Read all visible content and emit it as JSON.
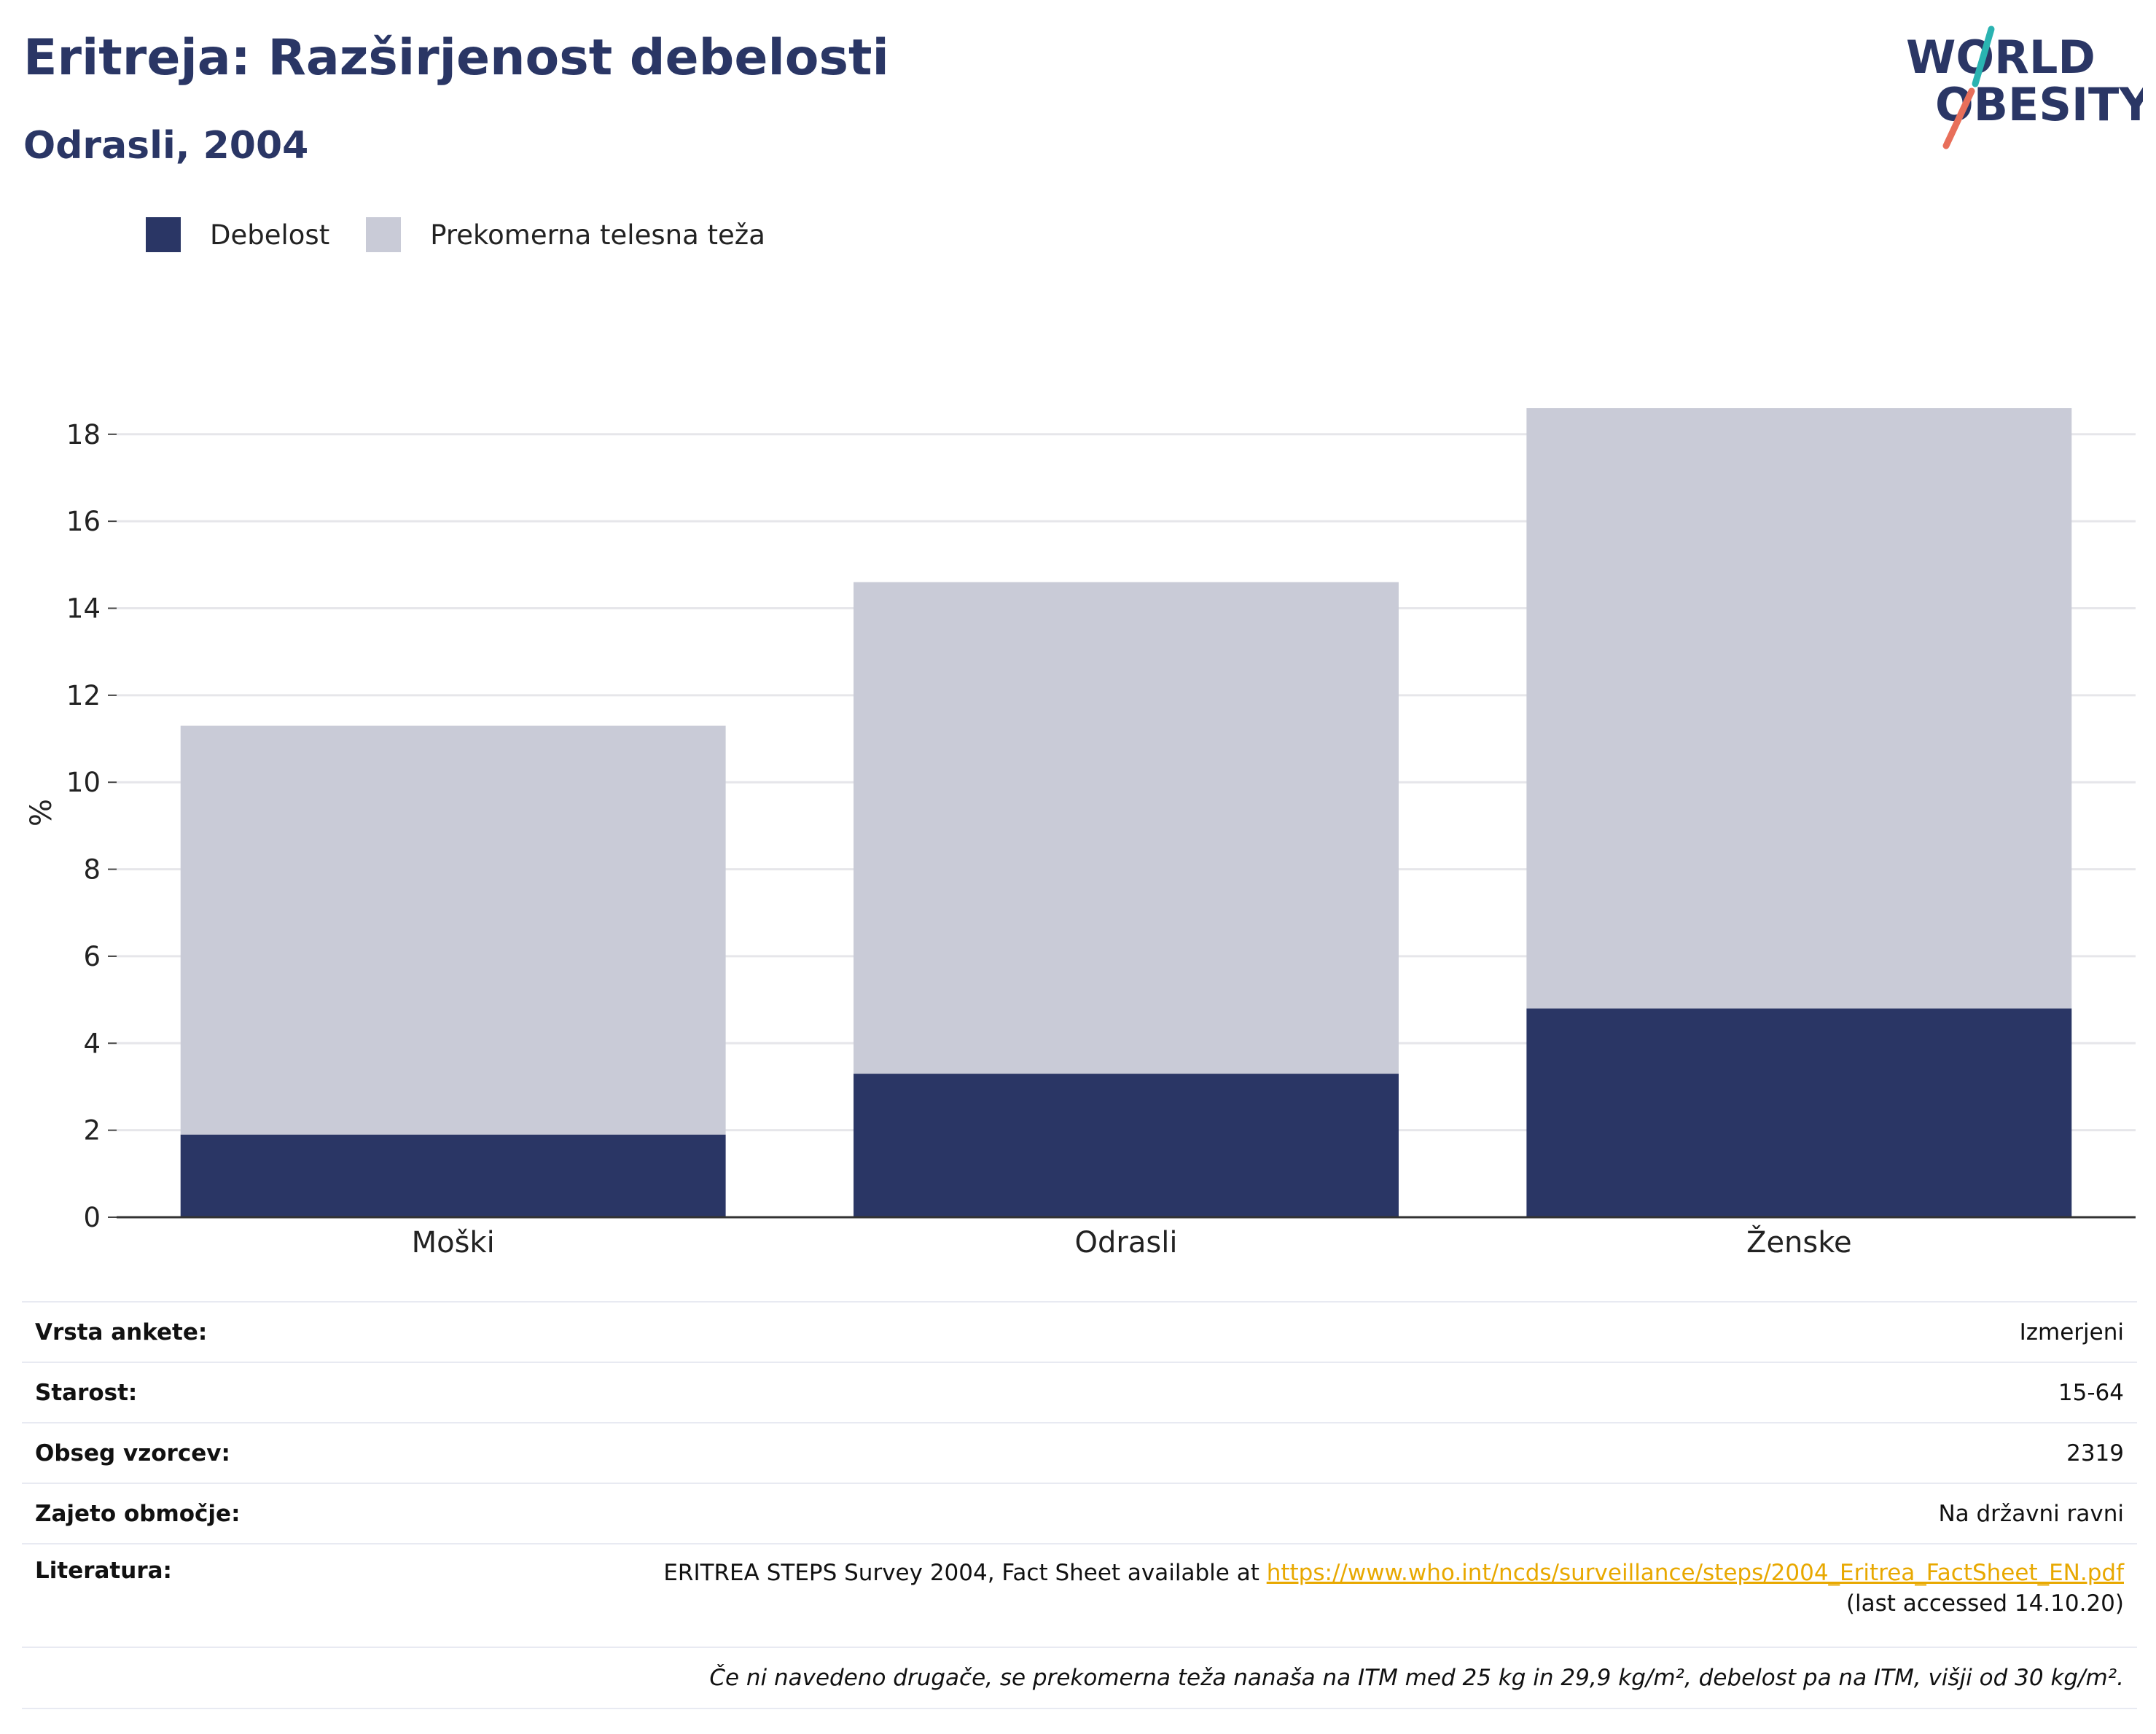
{
  "header": {
    "title": "Eritreja: Razširjenost debelosti",
    "subtitle": "Odrasli, 2004"
  },
  "logo": {
    "line1": "WORLD",
    "line2": "OBESITY"
  },
  "legend": [
    {
      "label": "Debelost",
      "color": "#2a3665"
    },
    {
      "label": "Prekomerna telesna teža",
      "color": "#c9cbd7"
    }
  ],
  "chart_data": {
    "type": "bar",
    "stacked": true,
    "categories": [
      "Moški",
      "Odrasli",
      "Ženske"
    ],
    "series": [
      {
        "name": "Debelost",
        "color": "#2a3665",
        "values": [
          1.9,
          3.3,
          4.8
        ]
      },
      {
        "name": "Prekomerna telesna teža",
        "color": "#c9cbd7",
        "values": [
          9.4,
          11.3,
          13.8
        ]
      }
    ],
    "ylabel": "%",
    "ylim": [
      0,
      18.6
    ],
    "yticks": [
      0,
      2,
      4,
      6,
      8,
      10,
      12,
      14,
      16,
      18
    ],
    "grid": true,
    "legend_position": "top-left"
  },
  "info": {
    "rows": [
      {
        "key": "Vrsta ankete:",
        "value": "Izmerjeni"
      },
      {
        "key": "Starost:",
        "value": "15-64"
      },
      {
        "key": "Obseg vzorcev:",
        "value": "2319"
      },
      {
        "key": "Zajeto območje:",
        "value": "Na državni ravni"
      }
    ],
    "literature": {
      "key": "Literatura:",
      "text": "ERITREA STEPS Survey 2004, Fact Sheet available at ",
      "link": "https://www.who.int/ncds/surveillance/steps/2004_Eritrea_FactSheet_EN.pdf",
      "accessed": "(last accessed 14.10.20)"
    },
    "note": "Če ni navedeno drugače, se prekomerna teža nanaša na ITM med 25 kg in 29,9 kg/m², debelost pa na ITM, višji od 30 kg/m²."
  }
}
